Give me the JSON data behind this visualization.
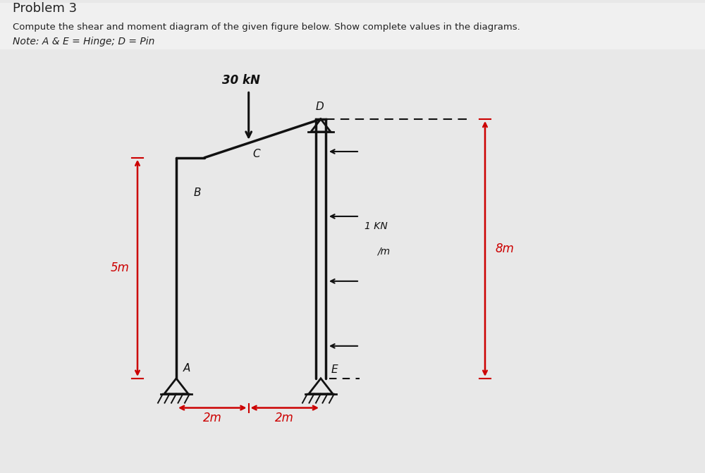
{
  "title": "Problem 3",
  "subtitle": "Compute the shear and moment diagram of the given figure below. Show complete values in the diagrams.",
  "note": "Note: A & E = Hinge; D = Pin",
  "bg_color": "#e8e8e8",
  "structure_color": "#111111",
  "annotation_color": "#cc0000",
  "load_label": "30 kN",
  "dist_load_label": "1KN",
  "dist_load_label2": "/m",
  "dim_2m_1": "2m",
  "dim_2m_2": "2m",
  "dim_5m": "5m",
  "dim_8m": "8m",
  "figsize": [
    10.0,
    6.71
  ]
}
